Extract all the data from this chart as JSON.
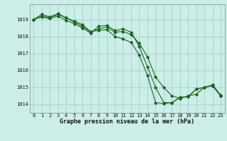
{
  "title": "Graphe pression niveau de la mer (hPa)",
  "background_color": "#cceee8",
  "grid_color": "#aad4ce",
  "line_color": "#1a6620",
  "x_labels": [
    "0",
    "1",
    "2",
    "3",
    "4",
    "5",
    "6",
    "7",
    "8",
    "9",
    "10",
    "11",
    "12",
    "13",
    "14",
    "15",
    "16",
    "17",
    "18",
    "19",
    "20",
    "21",
    "22",
    "23"
  ],
  "ylim": [
    1013.5,
    1019.9
  ],
  "yticks": [
    1014,
    1015,
    1016,
    1017,
    1018,
    1019
  ],
  "series1": [
    1019.0,
    1019.3,
    1019.15,
    1019.35,
    1019.1,
    1018.9,
    1018.7,
    1018.3,
    1018.35,
    1018.4,
    1018.0,
    1017.85,
    1017.65,
    1016.9,
    1015.7,
    1014.1,
    1014.05,
    1014.1,
    1014.4,
    1014.45,
    1014.9,
    1015.0,
    1015.1,
    1014.5
  ],
  "series2": [
    1019.0,
    1019.2,
    1019.1,
    1019.3,
    1019.1,
    1018.85,
    1018.6,
    1018.25,
    1018.45,
    1018.55,
    1018.25,
    1018.3,
    1018.1,
    1017.6,
    1016.8,
    1015.6,
    1015.0,
    1014.5,
    1014.35,
    1014.5,
    1014.6,
    1015.0,
    1015.15,
    1014.55
  ],
  "series3": [
    1019.0,
    1019.15,
    1019.05,
    1019.2,
    1018.95,
    1018.75,
    1018.5,
    1018.2,
    1018.6,
    1018.65,
    1018.35,
    1018.45,
    1018.25,
    1017.4,
    1016.2,
    1015.0,
    1014.1,
    1014.1,
    1014.4,
    1014.45,
    1014.9,
    1015.0,
    1015.1,
    1014.5
  ],
  "tick_fontsize": 5.0,
  "label_fontsize": 6.0
}
